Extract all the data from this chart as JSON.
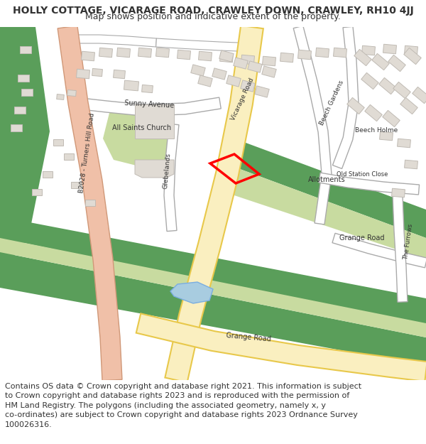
{
  "title_line1": "HOLLY COTTAGE, VICARAGE ROAD, CRAWLEY DOWN, CRAWLEY, RH10 4JJ",
  "title_line2": "Map shows position and indicative extent of the property.",
  "footer": "Contains OS data © Crown copyright and database right 2021. This information is subject\nto Crown copyright and database rights 2023 and is reproduced with the permission of\nHM Land Registry. The polygons (including the associated geometry, namely x, y\nco-ordinates) are subject to Crown copyright and database rights 2023 Ordnance Survey\n100026316.",
  "bg_map_color": "#f5f3f0",
  "road_yellow_fill": "#faefc0",
  "road_yellow_outline": "#e8c84a",
  "road_white": "#ffffff",
  "road_gray_outline": "#aaaaaa",
  "green_light": "#c8dba0",
  "green_dark": "#5a9e5a",
  "blue_water": "#a8cce0",
  "building_color": "#e0dbd4",
  "building_outline": "#c0bbb4",
  "b2028_fill": "#f0c0a8",
  "b2028_outline": "#d09878",
  "red_outline": "#ff0000",
  "text_color": "#333333",
  "header_bg": "#ffffff",
  "footer_bg": "#ffffff",
  "title_fontsize": 10,
  "subtitle_fontsize": 9,
  "footer_fontsize": 8
}
